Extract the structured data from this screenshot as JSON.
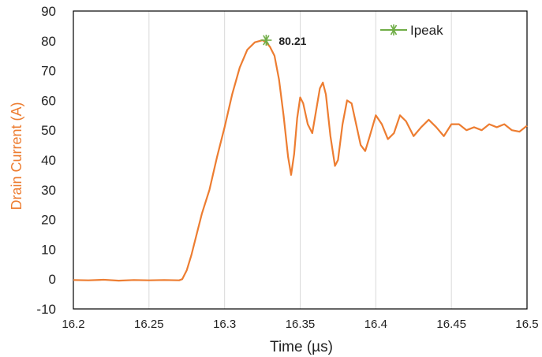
{
  "chart_data": {
    "type": "line",
    "xlabel": "Time (µs)",
    "ylabel": "Drain Current (A)",
    "xlim": [
      16.2,
      16.5
    ],
    "ylim": [
      -10,
      90
    ],
    "x_ticks": [
      "16.2",
      "16.25",
      "16.3",
      "16.35",
      "16.4",
      "16.45",
      "16.5"
    ],
    "y_ticks": [
      "-10",
      "0",
      "10",
      "20",
      "30",
      "40",
      "50",
      "60",
      "70",
      "80",
      "90"
    ],
    "grid": "vertical",
    "legend": {
      "position": "top-right",
      "entries": [
        "Ipeak"
      ]
    },
    "series": [
      {
        "name": "",
        "color": "#ed7d31",
        "x": [
          16.2,
          16.21,
          16.22,
          16.23,
          16.24,
          16.25,
          16.26,
          16.27,
          16.272,
          16.275,
          16.278,
          16.281,
          16.285,
          16.29,
          16.295,
          16.3,
          16.305,
          16.31,
          16.315,
          16.32,
          16.325,
          16.3275,
          16.33,
          16.333,
          16.336,
          16.339,
          16.342,
          16.344,
          16.346,
          16.348,
          16.35,
          16.352,
          16.355,
          16.358,
          16.36,
          16.363,
          16.365,
          16.367,
          16.37,
          16.373,
          16.375,
          16.378,
          16.381,
          16.384,
          16.387,
          16.39,
          16.393,
          16.396,
          16.4,
          16.404,
          16.408,
          16.412,
          16.416,
          16.42,
          16.425,
          16.43,
          16.435,
          16.44,
          16.445,
          16.45,
          16.455,
          16.46,
          16.465,
          16.47,
          16.475,
          16.48,
          16.485,
          16.49,
          16.495,
          16.5
        ],
        "y": [
          -0.3,
          -0.4,
          -0.2,
          -0.5,
          -0.3,
          -0.4,
          -0.3,
          -0.4,
          0,
          3,
          8,
          14,
          22,
          30,
          41,
          51,
          62,
          71,
          77,
          79.5,
          80.21,
          79.5,
          78,
          75,
          67,
          55,
          41,
          35,
          42,
          54,
          61,
          59,
          52,
          49,
          55,
          64,
          66,
          62,
          48,
          38,
          40,
          52,
          60,
          59,
          52,
          45,
          43,
          48,
          55,
          52,
          47,
          49,
          55,
          53,
          48,
          51,
          53.5,
          51,
          48,
          52,
          52,
          50,
          51,
          50,
          52,
          51,
          52,
          50,
          49.5,
          51.5
        ]
      },
      {
        "name": "Ipeak",
        "color": "#70ad47",
        "marker": "asterisk",
        "x": [
          16.3275
        ],
        "y": [
          80.21
        ],
        "label": "80.21"
      }
    ]
  }
}
